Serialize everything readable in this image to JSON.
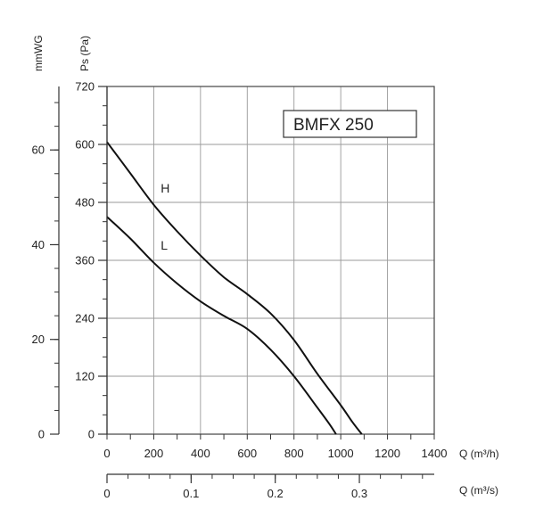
{
  "chart_data": {
    "type": "line",
    "model_label": "BMFX 250",
    "left_axis": {
      "label": "Ps (Pa)",
      "ylim": [
        0,
        720
      ],
      "ticks": [
        "0",
        "120",
        "240",
        "360",
        "480",
        "600",
        "720"
      ]
    },
    "far_left_axis": {
      "label": "mmWG",
      "ylim": [
        0,
        73.4
      ],
      "ticks": [
        "0",
        "20",
        "40",
        "60"
      ]
    },
    "bottom_axis": {
      "label": "Q (m³/h)",
      "xlim": [
        0,
        1400
      ],
      "ticks": [
        "0",
        "200",
        "400",
        "600",
        "800",
        "1000",
        "1200",
        "1400"
      ]
    },
    "second_bottom_axis": {
      "label": "Q (m³/s)",
      "xlim": [
        0,
        0.389
      ],
      "ticks": [
        "0",
        "0.1",
        "0.2",
        "0.3"
      ]
    },
    "grid": true,
    "series": [
      {
        "name": "H",
        "x": [
          0,
          100,
          200,
          300,
          400,
          500,
          600,
          700,
          800,
          900,
          1000,
          1050,
          1090
        ],
        "y": [
          605,
          540,
          475,
          420,
          370,
          325,
          290,
          250,
          195,
          125,
          60,
          25,
          0
        ]
      },
      {
        "name": "L",
        "x": [
          0,
          100,
          200,
          300,
          400,
          500,
          600,
          700,
          800,
          900,
          950,
          980
        ],
        "y": [
          450,
          405,
          355,
          312,
          275,
          245,
          218,
          175,
          120,
          55,
          22,
          0
        ]
      }
    ]
  }
}
